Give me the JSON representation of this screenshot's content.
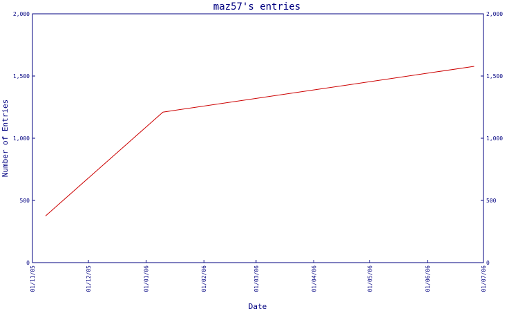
{
  "chart_data": {
    "type": "line",
    "title": "maz57's entries",
    "xlabel": "Date",
    "ylabel": "Number of Entries",
    "x_tick_labels": [
      "01/11/05",
      "01/12/05",
      "01/01/06",
      "01/02/06",
      "01/03/06",
      "01/04/06",
      "01/05/06",
      "01/06/06",
      "01/07/06"
    ],
    "xlim": [
      "2005-11-01",
      "2006-07-01"
    ],
    "ylim": [
      0,
      2000
    ],
    "y_ticks": [
      0,
      500,
      1000,
      1500,
      2000
    ],
    "y_tick_labels": [
      "0",
      "500",
      "1,000",
      "1,500",
      "2,000"
    ],
    "series": [
      {
        "color": "#cc0000",
        "points": [
          {
            "x": "2005-11-08",
            "y": 375
          },
          {
            "x": "2006-01-10",
            "y": 1210
          },
          {
            "x": "2006-06-26",
            "y": 1578
          }
        ]
      }
    ],
    "grid": false,
    "axis_color": "#000080"
  }
}
